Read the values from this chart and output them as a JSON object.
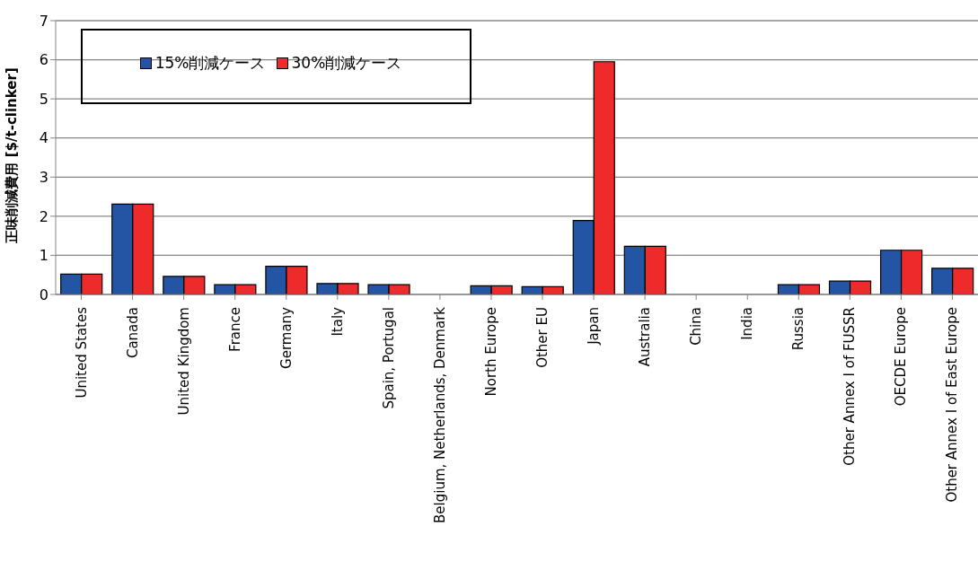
{
  "chart_data": {
    "type": "bar",
    "ylabel": "正味削減費用 [$/t-clinker]",
    "categories": [
      "United States",
      "Canada",
      "United Kingdom",
      "France",
      "Germany",
      "Italy",
      "Spain, Portugal",
      "Belgium, Netherlands, Denmark",
      "North Europe",
      "Other EU",
      "Japan",
      "Australia",
      "China",
      "India",
      "Russia",
      "Other Annex I of FUSSR",
      "OECDE Europe",
      "Other Annex I of East Europe"
    ],
    "series": [
      {
        "name": "15%削減ケース",
        "color": "#2455a4",
        "values": [
          0.52,
          2.31,
          0.46,
          0.25,
          0.72,
          0.28,
          0.25,
          0,
          0.22,
          0.2,
          1.89,
          1.23,
          0,
          0,
          0.25,
          0.34,
          1.13,
          0.67
        ]
      },
      {
        "name": "30%削減ケース",
        "color": "#ee2a2a",
        "values": [
          0.52,
          2.31,
          0.46,
          0.25,
          0.72,
          0.28,
          0.25,
          0,
          0.22,
          0.2,
          5.95,
          1.23,
          0,
          0,
          0.25,
          0.34,
          1.13,
          0.67
        ]
      }
    ],
    "ylim": [
      0,
      7
    ],
    "yticks": [
      0,
      1,
      2,
      3,
      4,
      5,
      6,
      7
    ],
    "grid": "y",
    "legend": "top left"
  }
}
